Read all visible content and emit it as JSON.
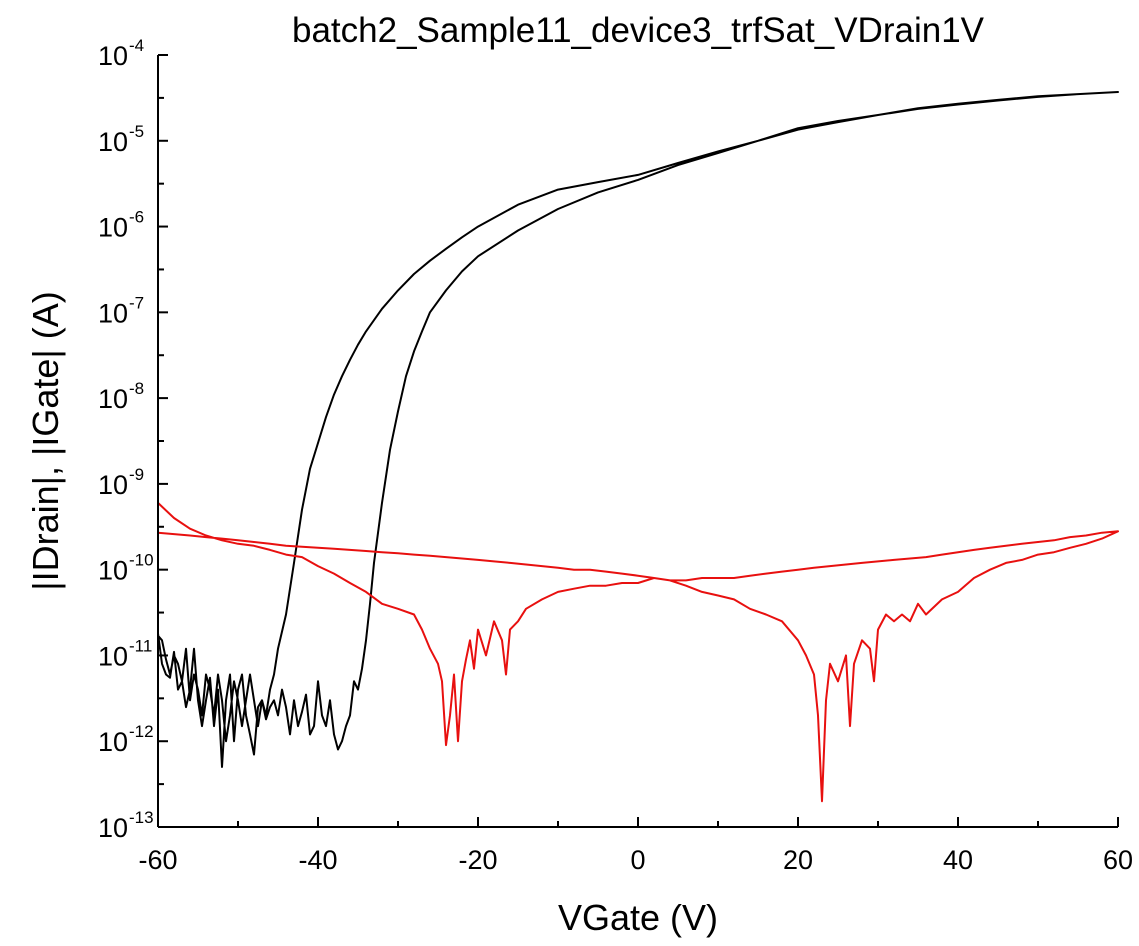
{
  "chart_data": {
    "type": "line",
    "title": "batch2_Sample11_device3_trfSat_VDrain1V",
    "xlabel": "VGate (V)",
    "ylabel": "|IDrain|, |IGate| (A)",
    "x_scale": "linear",
    "y_scale": "log",
    "xlim": [
      -60,
      60
    ],
    "ylim": [
      1e-13,
      0.0001
    ],
    "x_ticks": [
      -60,
      -40,
      -20,
      0,
      20,
      40,
      60
    ],
    "x_tick_labels": [
      "-60",
      "-40",
      "-20",
      "0",
      "20",
      "40",
      "60"
    ],
    "y_ticks": [
      {
        "base": "10",
        "exp": "-13",
        "value": 1e-13
      },
      {
        "base": "10",
        "exp": "-12",
        "value": 1e-12
      },
      {
        "base": "10",
        "exp": "-11",
        "value": 1e-11
      },
      {
        "base": "10",
        "exp": "-10",
        "value": 1e-10
      },
      {
        "base": "10",
        "exp": "-9",
        "value": 1e-09
      },
      {
        "base": "10",
        "exp": "-8",
        "value": 1e-08
      },
      {
        "base": "10",
        "exp": "-7",
        "value": 1e-07
      },
      {
        "base": "10",
        "exp": "-6",
        "value": 1e-06
      },
      {
        "base": "10",
        "exp": "-5",
        "value": 1e-05
      },
      {
        "base": "10",
        "exp": "-4",
        "value": 0.0001
      }
    ],
    "grid": false,
    "legend": "none",
    "series": [
      {
        "color": "#000000",
        "points": [
          [
            -60,
            1.8e-11
          ],
          [
            -59.5,
            8e-12
          ],
          [
            -59,
            6e-12
          ],
          [
            -58.5,
            5.5e-12
          ],
          [
            -58,
            1.1e-11
          ],
          [
            -57.5,
            4e-12
          ],
          [
            -57,
            5e-12
          ],
          [
            -56.5,
            2.5e-12
          ],
          [
            -56,
            4e-12
          ],
          [
            -55.5,
            1.2e-11
          ],
          [
            -55,
            3e-12
          ],
          [
            -54.5,
            1.5e-12
          ],
          [
            -54,
            3e-12
          ],
          [
            -53.5,
            5.5e-12
          ],
          [
            -53,
            1.5e-12
          ],
          [
            -52.5,
            4e-12
          ],
          [
            -52,
            5e-13
          ],
          [
            -51.5,
            3e-12
          ],
          [
            -51,
            6e-12
          ],
          [
            -50.5,
            1e-12
          ],
          [
            -50,
            4e-12
          ],
          [
            -49.5,
            6e-12
          ],
          [
            -49,
            2e-12
          ],
          [
            -48.5,
            1.2e-12
          ],
          [
            -48,
            7e-13
          ],
          [
            -47.5,
            2.5e-12
          ],
          [
            -47,
            3e-12
          ],
          [
            -46.5,
            2e-12
          ],
          [
            -46,
            4e-12
          ],
          [
            -45.5,
            6e-12
          ],
          [
            -45,
            1.2e-11
          ],
          [
            -44,
            3e-11
          ],
          [
            -43,
            1.2e-10
          ],
          [
            -42,
            5e-10
          ],
          [
            -41,
            1.5e-09
          ],
          [
            -40,
            3e-09
          ],
          [
            -39,
            6e-09
          ],
          [
            -38,
            1.1e-08
          ],
          [
            -37,
            1.8e-08
          ],
          [
            -36,
            2.8e-08
          ],
          [
            -35,
            4.2e-08
          ],
          [
            -34,
            6e-08
          ],
          [
            -32,
            1.1e-07
          ],
          [
            -30,
            1.8e-07
          ],
          [
            -28,
            2.8e-07
          ],
          [
            -26,
            4e-07
          ],
          [
            -24,
            5.5e-07
          ],
          [
            -22,
            7.5e-07
          ],
          [
            -20,
            1e-06
          ],
          [
            -15,
            1.8e-06
          ],
          [
            -10,
            2.7e-06
          ],
          [
            -5,
            3.3e-06
          ],
          [
            0,
            4e-06
          ],
          [
            5,
            5.5e-06
          ],
          [
            10,
            7.5e-06
          ],
          [
            15,
            1e-05
          ],
          [
            20,
            1.4e-05
          ],
          [
            25,
            1.7e-05
          ],
          [
            30,
            2e-05
          ],
          [
            35,
            2.4e-05
          ],
          [
            40,
            2.7e-05
          ],
          [
            45,
            3e-05
          ],
          [
            50,
            3.3e-05
          ],
          [
            55,
            3.5e-05
          ],
          [
            60,
            3.7e-05
          ],
          [
            55,
            3.5e-05
          ],
          [
            50,
            3.25e-05
          ],
          [
            45,
            2.95e-05
          ],
          [
            40,
            2.65e-05
          ],
          [
            35,
            2.35e-05
          ],
          [
            30,
            2e-05
          ],
          [
            25,
            1.65e-05
          ],
          [
            20,
            1.35e-05
          ],
          [
            15,
            1e-05
          ],
          [
            10,
            7.2e-06
          ],
          [
            5,
            5.2e-06
          ],
          [
            0,
            3.5e-06
          ],
          [
            -5,
            2.5e-06
          ],
          [
            -10,
            1.6e-06
          ],
          [
            -15,
            9e-07
          ],
          [
            -20,
            4.5e-07
          ],
          [
            -22,
            3e-07
          ],
          [
            -24,
            1.8e-07
          ],
          [
            -26,
            1e-07
          ],
          [
            -27,
            6e-08
          ],
          [
            -28,
            3.5e-08
          ],
          [
            -29,
            1.8e-08
          ],
          [
            -30,
            7e-09
          ],
          [
            -31,
            2.5e-09
          ],
          [
            -32,
            6e-10
          ],
          [
            -33,
            1.2e-10
          ],
          [
            -33.5,
            4e-11
          ],
          [
            -34,
            1.5e-11
          ],
          [
            -34.5,
            7e-12
          ],
          [
            -35,
            4e-12
          ],
          [
            -35.5,
            5e-12
          ],
          [
            -36,
            2e-12
          ],
          [
            -36.5,
            1.5e-12
          ],
          [
            -37,
            1e-12
          ],
          [
            -37.5,
            8e-13
          ],
          [
            -38,
            1.2e-12
          ],
          [
            -38.5,
            3e-12
          ],
          [
            -39,
            1.5e-12
          ],
          [
            -39.5,
            2e-12
          ],
          [
            -40,
            5e-12
          ],
          [
            -40.5,
            1.5e-12
          ],
          [
            -41,
            1.2e-12
          ],
          [
            -41.5,
            3.5e-12
          ],
          [
            -42,
            2.2e-12
          ],
          [
            -42.5,
            1.5e-12
          ],
          [
            -43,
            3e-12
          ],
          [
            -43.5,
            1.2e-12
          ],
          [
            -44,
            2.5e-12
          ],
          [
            -44.5,
            4e-12
          ],
          [
            -45,
            2e-12
          ],
          [
            -45.5,
            3e-12
          ],
          [
            -46,
            2.5e-12
          ],
          [
            -46.5,
            1.8e-12
          ],
          [
            -47,
            3e-12
          ],
          [
            -47.5,
            1.5e-12
          ],
          [
            -48,
            3e-12
          ],
          [
            -48.5,
            6e-12
          ],
          [
            -49,
            3e-12
          ],
          [
            -49.5,
            1.5e-12
          ],
          [
            -50,
            3e-12
          ],
          [
            -50.5,
            5e-12
          ],
          [
            -51,
            2e-12
          ],
          [
            -51.5,
            1e-12
          ],
          [
            -52,
            3e-12
          ],
          [
            -52.5,
            6e-12
          ],
          [
            -53,
            2e-12
          ],
          [
            -53.5,
            4e-12
          ],
          [
            -54,
            6e-12
          ],
          [
            -54.5,
            2e-12
          ],
          [
            -55,
            4e-12
          ],
          [
            -55.5,
            6e-12
          ],
          [
            -56,
            3e-12
          ],
          [
            -56.5,
            1.2e-11
          ],
          [
            -57,
            5e-12
          ],
          [
            -57.5,
            8e-12
          ],
          [
            -58,
            1e-11
          ],
          [
            -58.5,
            6e-12
          ],
          [
            -59,
            9e-12
          ],
          [
            -59.5,
            1.5e-11
          ],
          [
            -60,
            1.7e-11
          ]
        ]
      },
      {
        "color": "#e8100f",
        "points": [
          [
            -60,
            6e-10
          ],
          [
            -58,
            4e-10
          ],
          [
            -56,
            3e-10
          ],
          [
            -54,
            2.5e-10
          ],
          [
            -52,
            2.2e-10
          ],
          [
            -50,
            2e-10
          ],
          [
            -48,
            1.9e-10
          ],
          [
            -46,
            1.7e-10
          ],
          [
            -44,
            1.5e-10
          ],
          [
            -42,
            1.4e-10
          ],
          [
            -40,
            1.1e-10
          ],
          [
            -38,
            9e-11
          ],
          [
            -36,
            7e-11
          ],
          [
            -34,
            5.5e-11
          ],
          [
            -32,
            4e-11
          ],
          [
            -30,
            3.5e-11
          ],
          [
            -28,
            3e-11
          ],
          [
            -27,
            2e-11
          ],
          [
            -26,
            1.2e-11
          ],
          [
            -25,
            8e-12
          ],
          [
            -24.5,
            5e-12
          ],
          [
            -24,
            9e-13
          ],
          [
            -23.5,
            2e-12
          ],
          [
            -23,
            6e-12
          ],
          [
            -22.5,
            1e-12
          ],
          [
            -22,
            5e-12
          ],
          [
            -21.5,
            9e-12
          ],
          [
            -21,
            1.5e-11
          ],
          [
            -20.5,
            7e-12
          ],
          [
            -20,
            2e-11
          ],
          [
            -19,
            1e-11
          ],
          [
            -18,
            2.5e-11
          ],
          [
            -17,
            1.5e-11
          ],
          [
            -16.5,
            6e-12
          ],
          [
            -16,
            2e-11
          ],
          [
            -15,
            2.5e-11
          ],
          [
            -14,
            3.5e-11
          ],
          [
            -12,
            4.5e-11
          ],
          [
            -10,
            5.5e-11
          ],
          [
            -8,
            6e-11
          ],
          [
            -6,
            6.5e-11
          ],
          [
            -4,
            6.5e-11
          ],
          [
            -2,
            7e-11
          ],
          [
            0,
            7e-11
          ],
          [
            2,
            8e-11
          ],
          [
            4,
            7.5e-11
          ],
          [
            6,
            6.5e-11
          ],
          [
            8,
            5.5e-11
          ],
          [
            10,
            5e-11
          ],
          [
            12,
            4.5e-11
          ],
          [
            14,
            3.5e-11
          ],
          [
            16,
            3e-11
          ],
          [
            18,
            2.5e-11
          ],
          [
            20,
            1.5e-11
          ],
          [
            21,
            1e-11
          ],
          [
            22,
            6e-12
          ],
          [
            22.5,
            2e-12
          ],
          [
            23,
            2e-13
          ],
          [
            23.5,
            3e-12
          ],
          [
            24,
            8e-12
          ],
          [
            25,
            5e-12
          ],
          [
            26,
            1e-11
          ],
          [
            26.5,
            1.5e-12
          ],
          [
            27,
            8e-12
          ],
          [
            28,
            1.5e-11
          ],
          [
            29,
            1.2e-11
          ],
          [
            29.5,
            5e-12
          ],
          [
            30,
            2e-11
          ],
          [
            31,
            3e-11
          ],
          [
            32,
            2.5e-11
          ],
          [
            33,
            3e-11
          ],
          [
            34,
            2.5e-11
          ],
          [
            35,
            4e-11
          ],
          [
            36,
            3e-11
          ],
          [
            38,
            4.5e-11
          ],
          [
            40,
            5.5e-11
          ],
          [
            42,
            8e-11
          ],
          [
            44,
            1e-10
          ],
          [
            46,
            1.2e-10
          ],
          [
            48,
            1.3e-10
          ],
          [
            50,
            1.5e-10
          ],
          [
            52,
            1.6e-10
          ],
          [
            54,
            1.8e-10
          ],
          [
            56,
            2e-10
          ],
          [
            58,
            2.3e-10
          ],
          [
            60,
            2.8e-10
          ],
          [
            58,
            2.7e-10
          ],
          [
            56,
            2.5e-10
          ],
          [
            54,
            2.4e-10
          ],
          [
            52,
            2.2e-10
          ],
          [
            50,
            2.1e-10
          ],
          [
            48,
            2e-10
          ],
          [
            46,
            1.9e-10
          ],
          [
            44,
            1.8e-10
          ],
          [
            42,
            1.7e-10
          ],
          [
            40,
            1.6e-10
          ],
          [
            38,
            1.5e-10
          ],
          [
            36,
            1.4e-10
          ],
          [
            34,
            1.35e-10
          ],
          [
            32,
            1.3e-10
          ],
          [
            30,
            1.25e-10
          ],
          [
            28,
            1.2e-10
          ],
          [
            26,
            1.15e-10
          ],
          [
            24,
            1.1e-10
          ],
          [
            22,
            1.05e-10
          ],
          [
            20,
            1e-10
          ],
          [
            18,
            9.5e-11
          ],
          [
            16,
            9e-11
          ],
          [
            14,
            8.5e-11
          ],
          [
            12,
            8e-11
          ],
          [
            10,
            8e-11
          ],
          [
            8,
            8e-11
          ],
          [
            6,
            7.5e-11
          ],
          [
            4,
            7.5e-11
          ],
          [
            2,
            8e-11
          ],
          [
            0,
            8.5e-11
          ],
          [
            -2,
            9e-11
          ],
          [
            -4,
            9.5e-11
          ],
          [
            -6,
            1e-10
          ],
          [
            -8,
            1e-10
          ],
          [
            -10,
            1.05e-10
          ],
          [
            -12,
            1.1e-10
          ],
          [
            -14,
            1.15e-10
          ],
          [
            -16,
            1.2e-10
          ],
          [
            -18,
            1.25e-10
          ],
          [
            -20,
            1.3e-10
          ],
          [
            -22,
            1.35e-10
          ],
          [
            -24,
            1.4e-10
          ],
          [
            -26,
            1.45e-10
          ],
          [
            -28,
            1.5e-10
          ],
          [
            -30,
            1.55e-10
          ],
          [
            -32,
            1.6e-10
          ],
          [
            -34,
            1.65e-10
          ],
          [
            -36,
            1.7e-10
          ],
          [
            -38,
            1.75e-10
          ],
          [
            -40,
            1.8e-10
          ],
          [
            -42,
            1.85e-10
          ],
          [
            -44,
            1.9e-10
          ],
          [
            -46,
            2e-10
          ],
          [
            -48,
            2.1e-10
          ],
          [
            -50,
            2.2e-10
          ],
          [
            -52,
            2.3e-10
          ],
          [
            -54,
            2.4e-10
          ],
          [
            -56,
            2.5e-10
          ],
          [
            -58,
            2.6e-10
          ],
          [
            -60,
            2.7e-10
          ]
        ]
      }
    ]
  }
}
